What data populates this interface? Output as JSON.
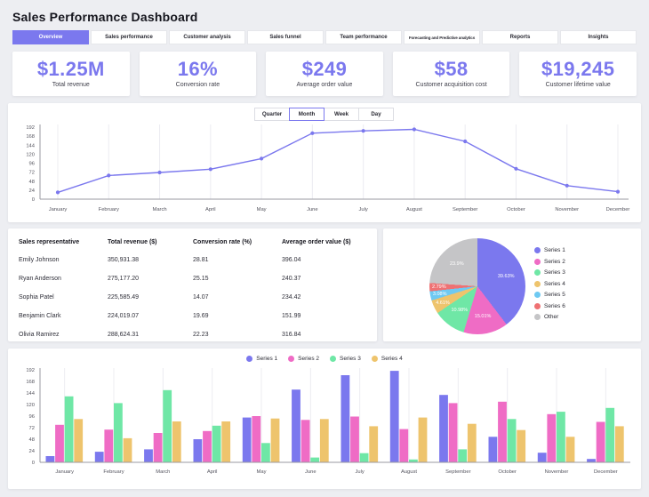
{
  "page": {
    "title": "Sales Performance Dashboard"
  },
  "tabs": {
    "items": [
      "Overview",
      "Sales performance",
      "Customer analysis",
      "Sales funnel",
      "Team performance",
      "Forecasting and Predictive analytics",
      "Reports",
      "Insights"
    ],
    "active": "Overview"
  },
  "kpis": [
    {
      "value": "$1.25M",
      "label": "Total revenue"
    },
    {
      "value": "16%",
      "label": "Conversion rate"
    },
    {
      "value": "$249",
      "label": "Average order value"
    },
    {
      "value": "$58",
      "label": "Customer acquisition cost"
    },
    {
      "value": "$19,245",
      "label": "Customer lifetime value"
    }
  ],
  "period_toggle": {
    "options": [
      "Quarter",
      "Month",
      "Week",
      "Day"
    ],
    "selected": "Month"
  },
  "table": {
    "headers": [
      "Sales representative",
      "Total revenue ($)",
      "Conversion rate (%)",
      "Average order value ($)"
    ],
    "rows": [
      [
        "Emily Johnson",
        "350,931.38",
        "28.81",
        "396.04"
      ],
      [
        "Ryan Anderson",
        "275,177.20",
        "25.15",
        "240.37"
      ],
      [
        "Sophia Patel",
        "225,585.49",
        "14.07",
        "234.42"
      ],
      [
        "Benjamin Clark",
        "224,019.07",
        "19.69",
        "151.99"
      ],
      [
        "Olivia Ramirez",
        "288,624.31",
        "22.23",
        "316.84"
      ]
    ]
  },
  "colors": {
    "accent": "#7b78ee",
    "background": "#edeef2",
    "panel": "#ffffff",
    "axis": "#9a9aa2",
    "gridline": "#ececf1",
    "series1": "#7b78ee",
    "series2": "#ef6cc5",
    "series3": "#6fe7a6",
    "series4": "#eec46d",
    "series5": "#6ec9f2",
    "series6": "#ef7173",
    "other": "#c5c5c7"
  },
  "chart_data": [
    {
      "id": "monthly-trend",
      "type": "line",
      "x": [
        "January",
        "February",
        "March",
        "April",
        "May",
        "June",
        "July",
        "August",
        "September",
        "October",
        "November",
        "December"
      ],
      "values": [
        18,
        63,
        71,
        80,
        108,
        176,
        182,
        186,
        154,
        81,
        36,
        20
      ],
      "ylim": [
        0,
        192
      ],
      "yticks": [
        0,
        24,
        48,
        72,
        96,
        120,
        144,
        168,
        192
      ],
      "color": "#7b78ee",
      "grid": "vertical",
      "legend_position": "none"
    },
    {
      "id": "series-share",
      "type": "pie",
      "labels": [
        "Series 1",
        "Series 2",
        "Series 3",
        "Series 4",
        "Series 5",
        "Series 6",
        "Other"
      ],
      "values": [
        39.63,
        15.01,
        10.98,
        4.61,
        3.08,
        2.79,
        23.9
      ],
      "slice_labels": [
        "39.63%",
        "15.01%",
        "10.98%",
        "4.61%",
        "3.08%",
        "2.79%",
        "23.9%"
      ],
      "colors": [
        "#7b78ee",
        "#ef6cc5",
        "#6fe7a6",
        "#eec46d",
        "#6ec9f2",
        "#ef7173",
        "#c5c5c7"
      ],
      "legend_position": "right"
    },
    {
      "id": "monthly-series-comparison",
      "type": "bar",
      "categories": [
        "January",
        "February",
        "March",
        "April",
        "May",
        "June",
        "July",
        "August",
        "September",
        "October",
        "November",
        "December"
      ],
      "series": [
        {
          "name": "Series 1",
          "color": "#7b78ee",
          "values": [
            13,
            22,
            27,
            48,
            93,
            151,
            181,
            190,
            140,
            53,
            20,
            7
          ]
        },
        {
          "name": "Series 2",
          "color": "#ef6cc5",
          "values": [
            78,
            68,
            61,
            65,
            96,
            88,
            95,
            69,
            123,
            126,
            100,
            84
          ]
        },
        {
          "name": "Series 3",
          "color": "#6fe7a6",
          "values": [
            137,
            123,
            150,
            76,
            40,
            10,
            19,
            6,
            27,
            90,
            105,
            113
          ]
        },
        {
          "name": "Series 4",
          "color": "#eec46d",
          "values": [
            90,
            50,
            85,
            85,
            91,
            90,
            75,
            93,
            80,
            67,
            53,
            75
          ]
        }
      ],
      "ylim": [
        0,
        192
      ],
      "yticks": [
        0,
        24,
        48,
        72,
        96,
        120,
        144,
        168,
        192
      ],
      "grid": "vertical",
      "legend_position": "top"
    }
  ]
}
